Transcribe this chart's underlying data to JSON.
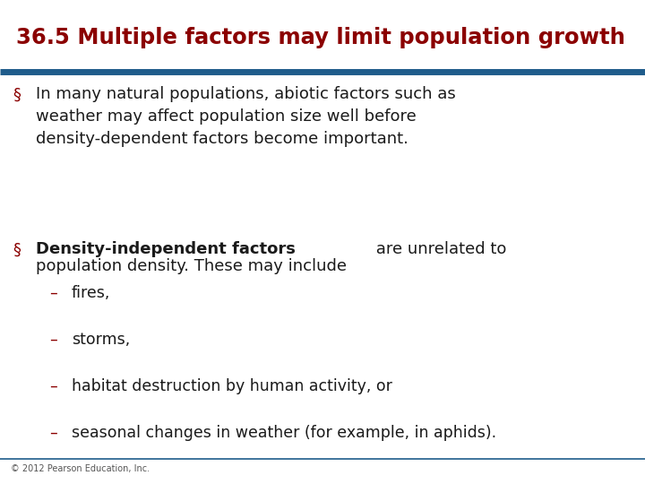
{
  "title": "36.5 Multiple factors may limit population growth",
  "title_color": "#8B0000",
  "title_fontsize": 17.5,
  "bg_color": "#FFFFFF",
  "line_color": "#1F5C8B",
  "bullet_color": "#8B0000",
  "dash_color": "#8B0000",
  "body_color": "#1a1a1a",
  "bullet1_text": "In many natural populations, abiotic factors such as\nweather may affect population size well before\ndensity-dependent factors become important.",
  "bullet2_bold": "Density-independent factors",
  "bullet2_rest": " are unrelated to\npopulation density. These may include",
  "sub_bullets": [
    "fires,",
    "storms,",
    "habitat destruction by human activity, or",
    "seasonal changes in weather (for example, in aphids)."
  ],
  "footer": "© 2012 Pearson Education, Inc.",
  "footer_fontsize": 7,
  "body_fontsize": 13,
  "sub_fontsize": 12.5
}
